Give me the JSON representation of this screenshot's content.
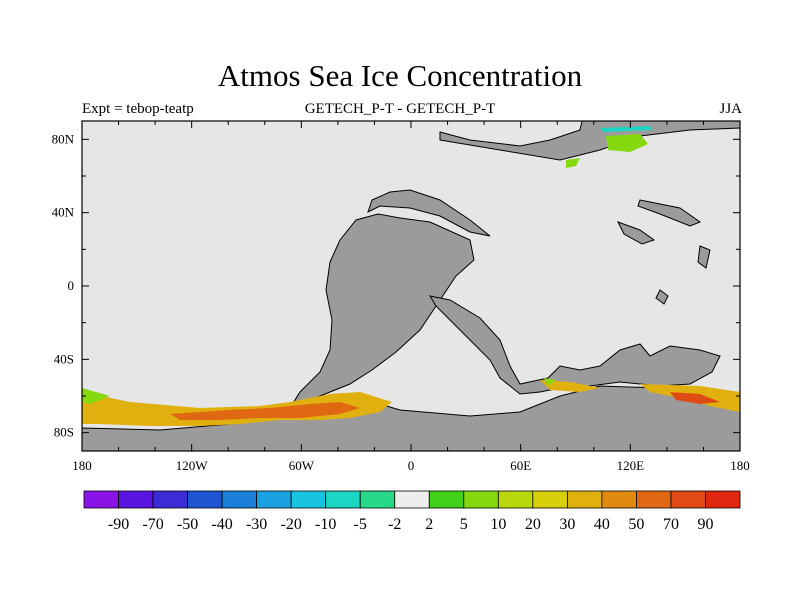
{
  "title": "Atmos Sea Ice Concentration",
  "header": {
    "left": "Expt = tebop-teatp",
    "center": "GETECH_P-T - GETECH_P-T",
    "right": "JJA"
  },
  "map": {
    "projection": "cylindrical-equidistant",
    "lon_range": [
      -180,
      180
    ],
    "lat_range": [
      -90,
      90
    ],
    "x_ticks": [
      {
        "value": -180,
        "label": "180"
      },
      {
        "value": -120,
        "label": "120W"
      },
      {
        "value": -60,
        "label": "60W"
      },
      {
        "value": 0,
        "label": "0"
      },
      {
        "value": 60,
        "label": "60E"
      },
      {
        "value": 120,
        "label": "120E"
      },
      {
        "value": 180,
        "label": "180"
      }
    ],
    "y_ticks": [
      {
        "value": 80,
        "label": "80N"
      },
      {
        "value": 40,
        "label": "40N"
      },
      {
        "value": 0,
        "label": "0"
      },
      {
        "value": -40,
        "label": "40S"
      },
      {
        "value": -80,
        "label": "80S"
      }
    ],
    "colors": {
      "ocean_near_zero": "#e6e6e6",
      "land": "#9b9b9b",
      "coastline": "#000000"
    }
  },
  "colorbar": {
    "labels": [
      "-90",
      "-70",
      "-50",
      "-40",
      "-30",
      "-20",
      "-10",
      "-5",
      "-2",
      "2",
      "5",
      "10",
      "20",
      "30",
      "40",
      "50",
      "70",
      "90"
    ],
    "colors": [
      "#8a14e6",
      "#5a16e0",
      "#3c2cd6",
      "#1f55d1",
      "#1a7fd9",
      "#1aa3e0",
      "#18c4e0",
      "#1ad6c2",
      "#29d98a",
      "#eeeeee",
      "#40d11a",
      "#86d90f",
      "#b8d80b",
      "#d8d00b",
      "#e0b00e",
      "#e08a10",
      "#e06812",
      "#e04a14",
      "#e02810"
    ]
  }
}
